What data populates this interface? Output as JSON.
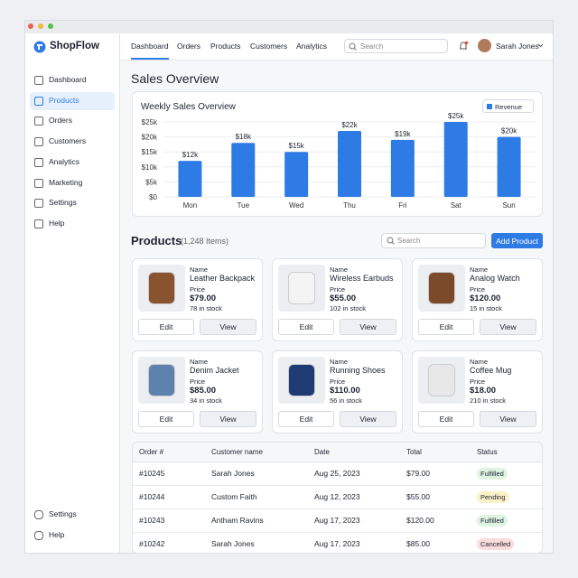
{
  "app": {
    "brand": "ShopFlow"
  },
  "sidebar": {
    "items": [
      "Dashboard",
      "Products",
      "Orders",
      "Customers",
      "Analytics",
      "Marketing",
      "Settings",
      "Help"
    ],
    "active": 1,
    "bottom": [
      "Settings",
      "Help"
    ]
  },
  "topnav": {
    "tabs": [
      "Dashboard",
      "Orders",
      "Products",
      "Customers",
      "Analytics"
    ],
    "active": 0,
    "search_placeholder": "Search",
    "user": "Sarah Jones"
  },
  "sales": {
    "heading": "Sales Overview",
    "chart_data": {
      "type": "bar",
      "title": "Weekly Sales Overview",
      "categories": [
        "Mon",
        "Tue",
        "Wed",
        "Thu",
        "Fri",
        "Sat",
        "Sun"
      ],
      "series": [
        {
          "name": "Revenue",
          "color": "#2f7be5",
          "values": [
            12000,
            18000,
            15000,
            22000,
            19000,
            25000,
            20000
          ]
        }
      ],
      "value_labels": [
        "$12k",
        "$18k",
        "$15k",
        "$22k",
        "$19k",
        "$25k",
        "$20k"
      ],
      "ylim": [
        0,
        25000
      ],
      "yticks": [
        {
          "value": 0,
          "label": "$0"
        },
        {
          "value": 5000,
          "label": "$5k"
        },
        {
          "value": 10000,
          "label": "$10k"
        },
        {
          "value": 15000,
          "label": "$15k"
        },
        {
          "value": 20000,
          "label": "$20k"
        },
        {
          "value": 25000,
          "label": "$25k"
        }
      ],
      "grid": true
    }
  },
  "products": {
    "heading": "Products",
    "count": "(1,248 Items)",
    "search_placeholder": "Search",
    "add_button": "Add Product",
    "labels": {
      "name": "Name",
      "price": "Price",
      "edit": "Edit",
      "view": "View"
    },
    "items": [
      {
        "name": "Leather Backpack",
        "price": "$79.00",
        "stock": "78 in stock"
      },
      {
        "name": "Wireless Earbuds",
        "price": "$55.00",
        "stock": "102 in stock"
      },
      {
        "name": "Analog Watch",
        "price": "$120.00",
        "stock": "15 in stock"
      },
      {
        "name": "Denim Jacket",
        "price": "$85.00",
        "stock": "34 in stock"
      },
      {
        "name": "Running Shoes",
        "price": "$110.00",
        "stock": "56 in stock"
      },
      {
        "name": "Coffee Mug",
        "price": "$18.00",
        "stock": "210 in stock"
      }
    ]
  },
  "orders": {
    "columns": [
      "Order #",
      "Customer name",
      "Date",
      "Total",
      "Status"
    ],
    "rows": [
      {
        "cells": [
          "#10245",
          "Sarah Jones",
          "Aug 25, 2023",
          "$79.00",
          "Fulfilled"
        ],
        "status_color": "#dff3e1"
      },
      {
        "cells": [
          "#10244",
          "Custom Faith",
          "Aug 12, 2023",
          "$55.00",
          "Pending"
        ],
        "status_color": "#fbf1c8"
      },
      {
        "cells": [
          "#10243",
          "Antham Ravins",
          "Aug 17, 2023",
          "$120.00",
          "Fulfilled"
        ],
        "status_color": "#dff3e1"
      },
      {
        "cells": [
          "#10242",
          "Sarah Jones",
          "Aug 17, 2023",
          "$85.00",
          "Cancelled"
        ],
        "status_color": "#fbdcdc"
      }
    ]
  }
}
